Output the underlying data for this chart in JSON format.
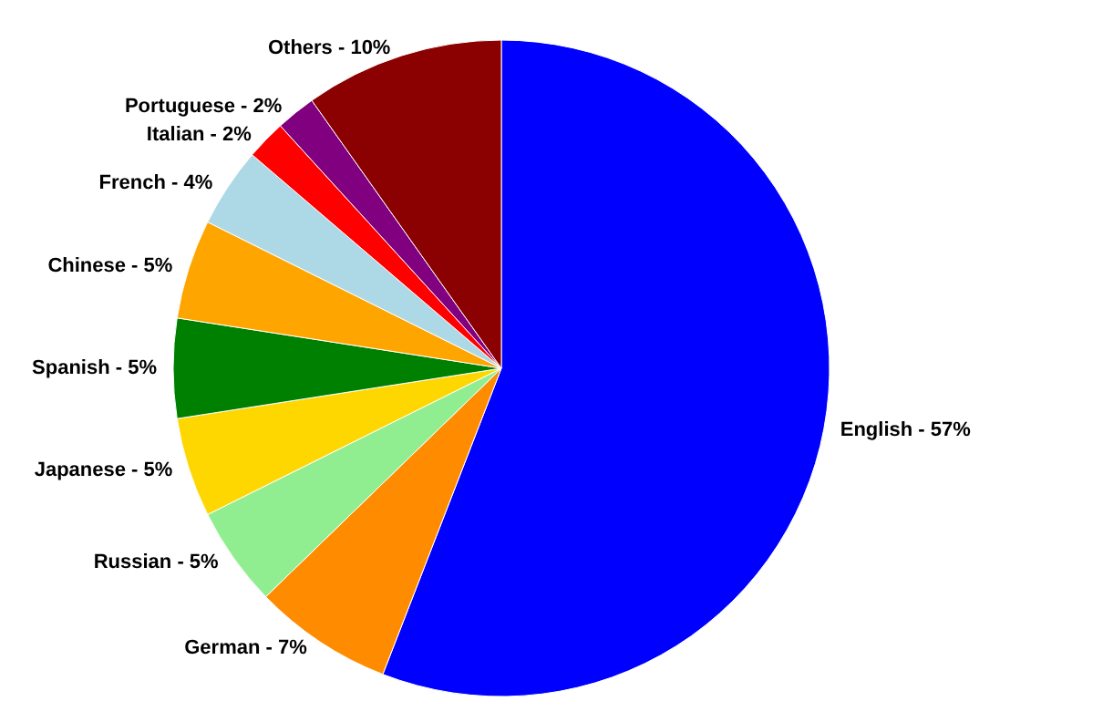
{
  "chart_data": {
    "type": "pie",
    "categories": [
      "English",
      "German",
      "Russian",
      "Japanese",
      "Spanish",
      "Chinese",
      "French",
      "Italian",
      "Portuguese",
      "Others"
    ],
    "values": [
      57,
      7,
      5,
      5,
      5,
      5,
      4,
      2,
      2,
      10
    ],
    "value_labels": [
      "57%",
      "7%",
      "5%",
      "5%",
      "5%",
      "5%",
      "4%",
      "2%",
      "2%",
      "10%"
    ],
    "colors": [
      "#0000ff",
      "#ff8c00",
      "#90ee90",
      "#ffd700",
      "#008000",
      "#ffa500",
      "#add8e6",
      "#ff0000",
      "#800080",
      "#8b0000"
    ],
    "legend": false
  }
}
